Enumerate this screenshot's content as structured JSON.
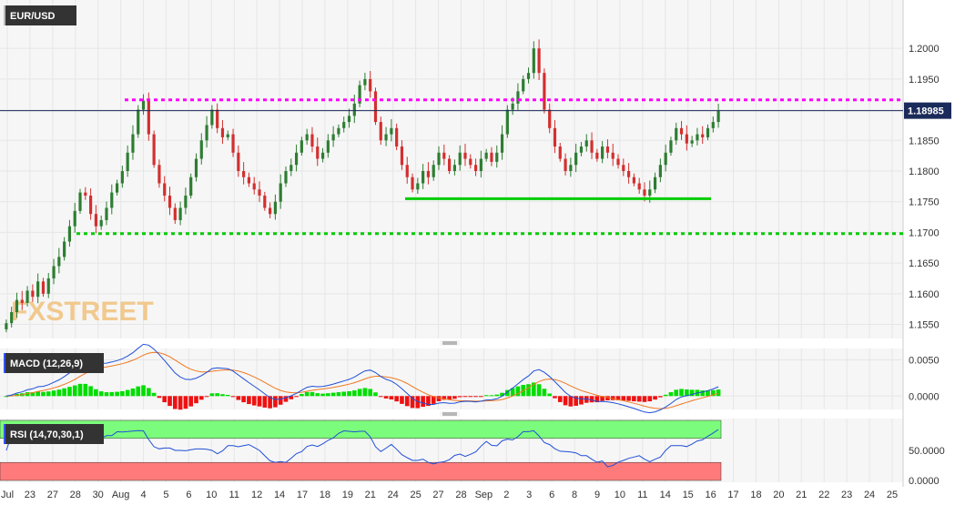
{
  "chart_data": {
    "type": "candlestick",
    "title": "EUR/USD",
    "watermark": "FXSTREET",
    "current_price_label": "1.18985",
    "colors": {
      "up": "#2e7d32",
      "down": "#d32f2f",
      "resistance": "#ff00ff",
      "support_solid": "#00cc00",
      "support_dotted": "#00cc00",
      "price_line": "#1a2a5a",
      "macd_line": "#1f4fd6",
      "signal_line": "#f07820",
      "hist_pos": "#00dd00",
      "hist_neg": "#ee1111",
      "rsi_line": "#1f4fd6",
      "rsi_over": "#7cfc7c",
      "rsi_under": "#ff7b7b"
    },
    "x_ticks": [
      "Jul",
      "23",
      "27",
      "28",
      "30",
      "Aug",
      "4",
      "5",
      "6",
      "10",
      "11",
      "12",
      "14",
      "17",
      "18",
      "19",
      "21",
      "24",
      "25",
      "27",
      "28",
      "Sep",
      "2",
      "3",
      "6",
      "8",
      "9",
      "10",
      "11",
      "14",
      "15",
      "16",
      "17",
      "18",
      "20",
      "21",
      "22",
      "23",
      "24",
      "25"
    ],
    "price_axis": {
      "ylim": [
        1.153,
        1.207
      ],
      "ticks": [
        "1.2000",
        "1.1950",
        "1.1900",
        "1.1850",
        "1.1800",
        "1.1750",
        "1.1700",
        "1.1650",
        "1.1600",
        "1.1550"
      ],
      "tick_values": [
        1.2,
        1.195,
        1.19,
        1.185,
        1.18,
        1.175,
        1.17,
        1.165,
        1.16,
        1.155
      ]
    },
    "levels": {
      "resistance": 1.1916,
      "support_solid": 1.1755,
      "support_dotted": 1.1698,
      "current": 1.18985
    },
    "close": [
      1.1552,
      1.157,
      1.159,
      1.1585,
      1.1605,
      1.1595,
      1.162,
      1.16,
      1.1625,
      1.1645,
      1.166,
      1.1685,
      1.171,
      1.1735,
      1.1765,
      1.176,
      1.173,
      1.171,
      1.172,
      1.174,
      1.1765,
      1.178,
      1.18,
      1.183,
      1.186,
      1.19,
      1.1915,
      1.186,
      1.181,
      1.178,
      1.176,
      1.174,
      1.172,
      1.174,
      1.176,
      1.179,
      1.182,
      1.185,
      1.1875,
      1.19,
      1.187,
      1.1855,
      1.186,
      1.183,
      1.18,
      1.179,
      1.178,
      1.177,
      1.176,
      1.174,
      1.173,
      1.175,
      1.178,
      1.18,
      1.181,
      1.183,
      1.185,
      1.186,
      1.184,
      1.182,
      1.183,
      1.185,
      1.186,
      1.187,
      1.188,
      1.189,
      1.191,
      1.194,
      1.195,
      1.193,
      1.188,
      1.185,
      1.186,
      1.187,
      1.184,
      1.181,
      1.179,
      1.177,
      1.178,
      1.18,
      1.179,
      1.181,
      1.183,
      1.182,
      1.18,
      1.181,
      1.183,
      1.182,
      1.181,
      1.18,
      1.182,
      1.183,
      1.1815,
      1.183,
      1.186,
      1.19,
      1.191,
      1.193,
      1.195,
      1.196,
      1.2,
      1.196,
      1.19,
      1.187,
      1.184,
      1.182,
      1.18,
      1.181,
      1.183,
      1.184,
      1.185,
      1.183,
      1.182,
      1.184,
      1.183,
      1.182,
      1.181,
      1.18,
      1.179,
      1.178,
      1.177,
      1.176,
      1.177,
      1.179,
      1.181,
      1.183,
      1.185,
      1.187,
      1.186,
      1.1845,
      1.185,
      1.186,
      1.1855,
      1.187,
      1.188,
      1.1898
    ],
    "macd": {
      "label": "MACD (12,26,9)",
      "ylim": [
        -0.0016,
        0.0062
      ],
      "ticks": [
        "0.0050",
        "0.0000"
      ],
      "tick_values": [
        0.005,
        0.0
      ]
    },
    "rsi": {
      "label": "RSI (14,70,30,1)",
      "ylim": [
        0,
        100
      ],
      "ticks": [
        "50.0000",
        "0.0000"
      ],
      "tick_values": [
        50,
        0
      ],
      "overbought": 70,
      "oversold": 30
    }
  }
}
